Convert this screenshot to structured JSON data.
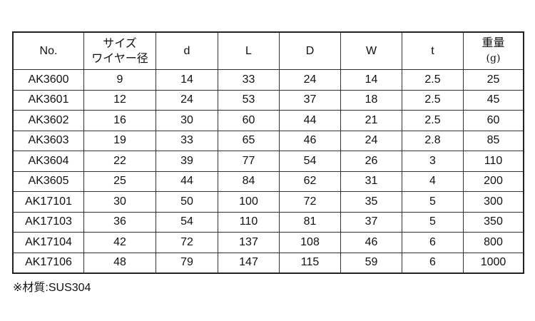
{
  "headers": {
    "no": "No.",
    "size1": "サイズ",
    "size2": "ワイヤー径",
    "d": "d",
    "L": "L",
    "D": "D",
    "W": "W",
    "t": "t",
    "wt1": "重量",
    "wt2": "(g)"
  },
  "rows": [
    [
      "AK3600",
      "9",
      "14",
      "33",
      "24",
      "14",
      "2.5",
      "25"
    ],
    [
      "AK3601",
      "12",
      "24",
      "53",
      "37",
      "18",
      "2.5",
      "45"
    ],
    [
      "AK3602",
      "16",
      "30",
      "60",
      "44",
      "21",
      "2.5",
      "60"
    ],
    [
      "AK3603",
      "19",
      "33",
      "65",
      "46",
      "24",
      "2.8",
      "85"
    ],
    [
      "AK3604",
      "22",
      "39",
      "77",
      "54",
      "26",
      "3",
      "110"
    ],
    [
      "AK3605",
      "25",
      "44",
      "84",
      "62",
      "31",
      "4",
      "200"
    ],
    [
      "AK17101",
      "30",
      "50",
      "100",
      "72",
      "35",
      "5",
      "300"
    ],
    [
      "AK17103",
      "36",
      "54",
      "110",
      "81",
      "37",
      "5",
      "350"
    ],
    [
      "AK17104",
      "42",
      "72",
      "137",
      "108",
      "46",
      "6",
      "800"
    ],
    [
      "AK17106",
      "48",
      "79",
      "147",
      "115",
      "59",
      "6",
      "1000"
    ]
  ],
  "note": "※材質:SUS304"
}
